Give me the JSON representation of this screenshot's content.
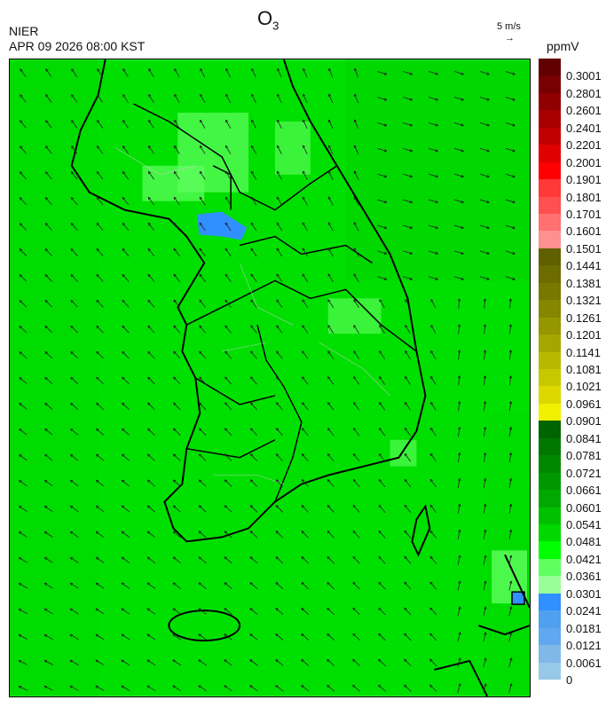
{
  "header": {
    "title_main": "O",
    "title_sub": "3",
    "org": "NIER",
    "datetime": "APR 09 2026 08:00 KST",
    "wind_scale": "5 m/s",
    "wind_scale_arrow": "→",
    "unit": "ppmV"
  },
  "map": {
    "background_color": "#00e600",
    "field": "O3 concentration",
    "overlay": "wind vectors",
    "feature_colors": {
      "low_patch": "#60ff60",
      "very_low_patch": "#98ff98",
      "blue_patch": "#3090ff"
    }
  },
  "colorbar": {
    "labels": [
      "0.3001",
      "0.2801",
      "0.2601",
      "0.2401",
      "0.2201",
      "0.2001",
      "0.1901",
      "0.1801",
      "0.1701",
      "0.1601",
      "0.1501",
      "0.1441",
      "0.1381",
      "0.1321",
      "0.1261",
      "0.1201",
      "0.1141",
      "0.1081",
      "0.1021",
      "0.0961",
      "0.0901",
      "0.0841",
      "0.0781",
      "0.0721",
      "0.0661",
      "0.0601",
      "0.0541",
      "0.0481",
      "0.0421",
      "0.0361",
      "0.0301",
      "0.0241",
      "0.0181",
      "0.0121",
      "0.0061",
      "0"
    ],
    "colors": [
      "#600000",
      "#780000",
      "#900000",
      "#a80000",
      "#c00000",
      "#e00000",
      "#ff0000",
      "#ff3838",
      "#ff5050",
      "#ff7070",
      "#ff9090",
      "#606000",
      "#6c6c00",
      "#787800",
      "#868600",
      "#969600",
      "#a6a600",
      "#b8b800",
      "#c8c800",
      "#dcd800",
      "#f0f000",
      "#006400",
      "#007800",
      "#008800",
      "#009800",
      "#00a800",
      "#00c000",
      "#00d800",
      "#00ff00",
      "#60ff60",
      "#98ff98",
      "#3090ff",
      "#50a0f0",
      "#60a8f0",
      "#80b8e8",
      "#98c8e8"
    ]
  }
}
